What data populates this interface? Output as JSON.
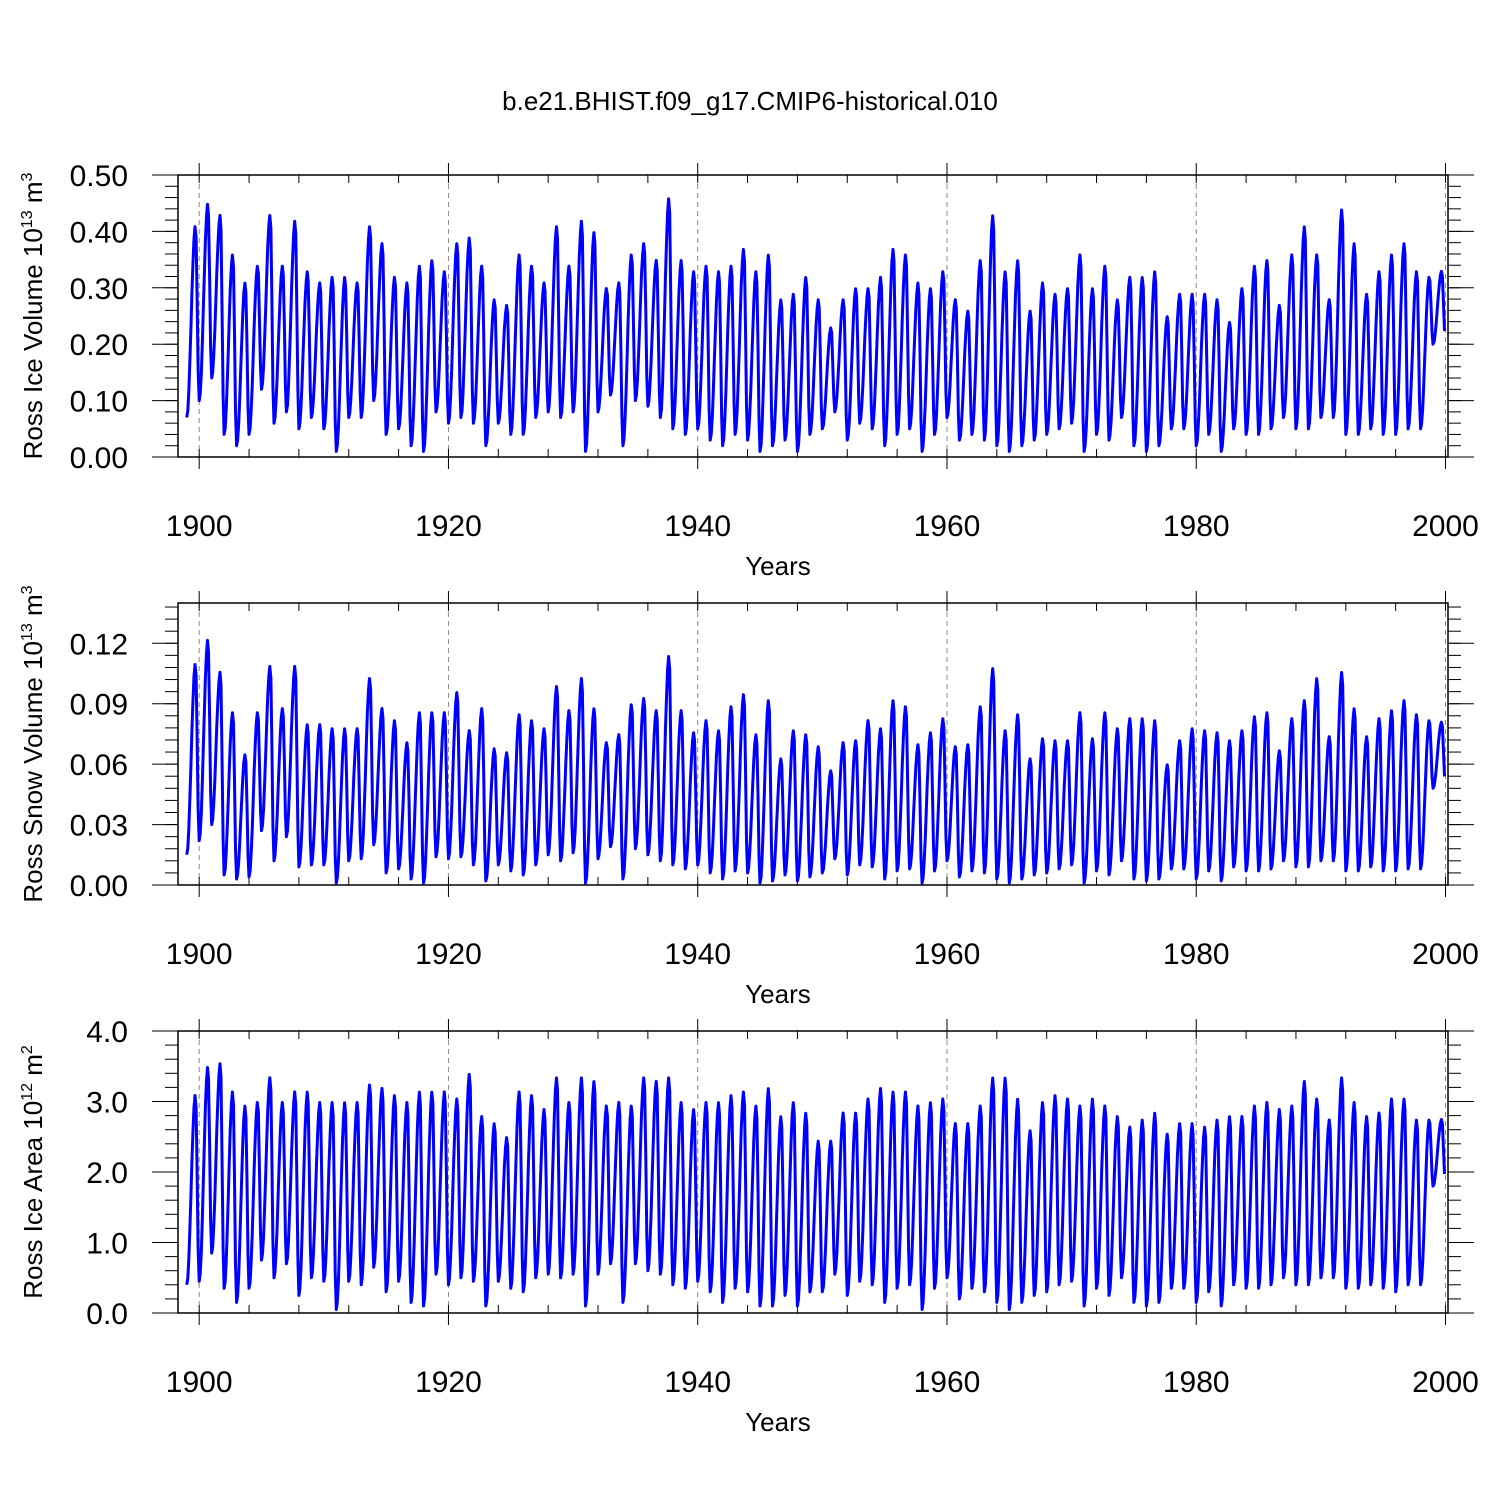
{
  "chart_data": [
    {
      "type": "line",
      "title": "b.e21.BHIST.f09_g17.CMIP6-historical.010",
      "ylabel": "Ross Ice Volume 10",
      "ylabel_exp": "13",
      "ylabel_unit": " m",
      "ylabel_unit_exp": "3",
      "xlabel": "Years",
      "xlim": [
        1898.3,
        2000.2
      ],
      "ylim": [
        0.0,
        0.5
      ],
      "yticks": [
        0.0,
        0.1,
        0.2,
        0.3,
        0.4,
        0.5
      ],
      "ytick_labels": [
        "0.00",
        "0.10",
        "0.20",
        "0.30",
        "0.40",
        "0.50"
      ],
      "xticks": [
        1900,
        1920,
        1940,
        1960,
        1980,
        2000
      ],
      "xtick_labels": [
        "1900",
        "1920",
        "1940",
        "1960",
        "1980",
        "2000"
      ],
      "grid_x": "dashed vertical at major years",
      "line_color": "#0000ff",
      "series": [
        {
          "name": "Ross Ice Volume",
          "start_year": 1899.0,
          "end_year": 2000.0,
          "annual_max": [
            0.41,
            0.45,
            0.43,
            0.36,
            0.31,
            0.34,
            0.43,
            0.34,
            0.42,
            0.33,
            0.31,
            0.32,
            0.32,
            0.31,
            0.41,
            0.38,
            0.32,
            0.31,
            0.34,
            0.35,
            0.33,
            0.38,
            0.39,
            0.34,
            0.28,
            0.27,
            0.36,
            0.34,
            0.31,
            0.41,
            0.34,
            0.42,
            0.4,
            0.3,
            0.31,
            0.36,
            0.38,
            0.35,
            0.46,
            0.35,
            0.33,
            0.34,
            0.33,
            0.34,
            0.37,
            0.33,
            0.36,
            0.28,
            0.29,
            0.32,
            0.28,
            0.23,
            0.28,
            0.3,
            0.3,
            0.32,
            0.37,
            0.36,
            0.31,
            0.3,
            0.33,
            0.28,
            0.26,
            0.35,
            0.43,
            0.33,
            0.35,
            0.26,
            0.31,
            0.29,
            0.3,
            0.36,
            0.3,
            0.34,
            0.28,
            0.32,
            0.32,
            0.33,
            0.25,
            0.29,
            0.29,
            0.29,
            0.28,
            0.24,
            0.3,
            0.34,
            0.35,
            0.27,
            0.36,
            0.41,
            0.36,
            0.28,
            0.44,
            0.38,
            0.29,
            0.33,
            0.36,
            0.38,
            0.33,
            0.32,
            0.33
          ],
          "annual_min": [
            0.07,
            0.1,
            0.14,
            0.04,
            0.02,
            0.04,
            0.12,
            0.06,
            0.08,
            0.05,
            0.07,
            0.05,
            0.01,
            0.07,
            0.07,
            0.1,
            0.04,
            0.05,
            0.02,
            0.01,
            0.08,
            0.06,
            0.07,
            0.06,
            0.02,
            0.06,
            0.04,
            0.04,
            0.07,
            0.08,
            0.07,
            0.08,
            0.01,
            0.08,
            0.11,
            0.02,
            0.1,
            0.09,
            0.07,
            0.05,
            0.04,
            0.05,
            0.03,
            0.02,
            0.04,
            0.03,
            0.01,
            0.02,
            0.03,
            0.01,
            0.04,
            0.05,
            0.08,
            0.03,
            0.06,
            0.05,
            0.02,
            0.04,
            0.05,
            0.01,
            0.04,
            0.07,
            0.03,
            0.04,
            0.03,
            0.02,
            0.01,
            0.02,
            0.03,
            0.04,
            0.05,
            0.06,
            0.01,
            0.04,
            0.03,
            0.07,
            0.02,
            0.01,
            0.02,
            0.05,
            0.05,
            0.02,
            0.04,
            0.01,
            0.05,
            0.04,
            0.04,
            0.05,
            0.07,
            0.05,
            0.05,
            0.07,
            0.07,
            0.04,
            0.04,
            0.05,
            0.04,
            0.04,
            0.05,
            0.05,
            0.2
          ]
        }
      ]
    },
    {
      "type": "line",
      "ylabel": "Ross Snow Volume 10",
      "ylabel_exp": "13",
      "ylabel_unit": " m",
      "ylabel_unit_exp": "3",
      "xlabel": "Years",
      "xlim": [
        1898.3,
        2000.2
      ],
      "ylim": [
        0.0,
        0.14
      ],
      "yticks": [
        0.0,
        0.03,
        0.06,
        0.09,
        0.12
      ],
      "ytick_labels": [
        "0.00",
        "0.03",
        "0.06",
        "0.09",
        "0.12"
      ],
      "xticks": [
        1900,
        1920,
        1940,
        1960,
        1980,
        2000
      ],
      "xtick_labels": [
        "1900",
        "1920",
        "1940",
        "1960",
        "1980",
        "2000"
      ],
      "grid_x": "dashed vertical at major years",
      "line_color": "#0000ff",
      "series": [
        {
          "name": "Ross Snow Volume",
          "start_year": 1899.0,
          "end_year": 2000.0,
          "annual_max": [
            0.11,
            0.122,
            0.106,
            0.086,
            0.065,
            0.086,
            0.109,
            0.088,
            0.109,
            0.08,
            0.08,
            0.078,
            0.078,
            0.078,
            0.103,
            0.088,
            0.082,
            0.071,
            0.086,
            0.086,
            0.086,
            0.096,
            0.077,
            0.088,
            0.068,
            0.066,
            0.085,
            0.082,
            0.078,
            0.099,
            0.087,
            0.103,
            0.088,
            0.071,
            0.075,
            0.09,
            0.093,
            0.087,
            0.114,
            0.087,
            0.076,
            0.082,
            0.077,
            0.089,
            0.095,
            0.075,
            0.092,
            0.063,
            0.077,
            0.075,
            0.069,
            0.057,
            0.071,
            0.072,
            0.082,
            0.078,
            0.092,
            0.089,
            0.07,
            0.076,
            0.083,
            0.069,
            0.07,
            0.089,
            0.108,
            0.077,
            0.085,
            0.063,
            0.073,
            0.072,
            0.072,
            0.086,
            0.073,
            0.086,
            0.078,
            0.083,
            0.083,
            0.082,
            0.06,
            0.072,
            0.078,
            0.077,
            0.076,
            0.072,
            0.077,
            0.084,
            0.086,
            0.067,
            0.083,
            0.092,
            0.103,
            0.074,
            0.106,
            0.088,
            0.074,
            0.083,
            0.087,
            0.092,
            0.085,
            0.082,
            0.081
          ],
          "annual_min": [
            0.015,
            0.022,
            0.03,
            0.005,
            0.003,
            0.004,
            0.027,
            0.012,
            0.024,
            0.009,
            0.01,
            0.01,
            0.001,
            0.012,
            0.013,
            0.02,
            0.006,
            0.008,
            0.003,
            0.001,
            0.014,
            0.013,
            0.014,
            0.01,
            0.002,
            0.01,
            0.007,
            0.005,
            0.01,
            0.015,
            0.012,
            0.016,
            0.001,
            0.013,
            0.019,
            0.003,
            0.018,
            0.015,
            0.012,
            0.01,
            0.008,
            0.01,
            0.006,
            0.003,
            0.007,
            0.006,
            0.001,
            0.002,
            0.005,
            0.002,
            0.004,
            0.006,
            0.013,
            0.005,
            0.01,
            0.009,
            0.003,
            0.007,
            0.008,
            0.001,
            0.007,
            0.012,
            0.004,
            0.007,
            0.006,
            0.003,
            0.001,
            0.003,
            0.005,
            0.006,
            0.008,
            0.01,
            0.001,
            0.007,
            0.005,
            0.012,
            0.003,
            0.002,
            0.003,
            0.008,
            0.008,
            0.003,
            0.007,
            0.002,
            0.009,
            0.007,
            0.007,
            0.008,
            0.012,
            0.009,
            0.009,
            0.012,
            0.012,
            0.007,
            0.007,
            0.009,
            0.007,
            0.007,
            0.008,
            0.008,
            0.048
          ]
        }
      ]
    },
    {
      "type": "line",
      "ylabel": "Ross Ice Area 10",
      "ylabel_exp": "12",
      "ylabel_unit": " m",
      "ylabel_unit_exp": "2",
      "xlabel": "Years",
      "xlim": [
        1898.3,
        2000.2
      ],
      "ylim": [
        0.0,
        4.0
      ],
      "yticks": [
        0.0,
        1.0,
        2.0,
        3.0,
        4.0
      ],
      "ytick_labels": [
        "0.0",
        "1.0",
        "2.0",
        "3.0",
        "4.0"
      ],
      "xticks": [
        1900,
        1920,
        1940,
        1960,
        1980,
        2000
      ],
      "xtick_labels": [
        "1900",
        "1920",
        "1940",
        "1960",
        "1980",
        "2000"
      ],
      "grid_x": "dashed vertical at major years",
      "line_color": "#0000ff",
      "series": [
        {
          "name": "Ross Ice Area",
          "start_year": 1899.0,
          "end_year": 2000.0,
          "annual_max": [
            3.1,
            3.5,
            3.55,
            3.15,
            2.95,
            3.0,
            3.35,
            3.0,
            3.15,
            3.15,
            3.0,
            3.0,
            3.0,
            3.0,
            3.25,
            3.2,
            3.1,
            3.0,
            3.15,
            3.15,
            3.15,
            3.05,
            3.4,
            2.8,
            2.7,
            2.5,
            3.15,
            3.1,
            2.9,
            3.35,
            3.0,
            3.35,
            3.3,
            2.95,
            3.0,
            2.95,
            3.35,
            3.3,
            3.35,
            3.0,
            2.9,
            3.0,
            3.0,
            3.1,
            3.15,
            2.95,
            3.2,
            2.8,
            3.0,
            2.85,
            2.45,
            2.45,
            2.85,
            2.85,
            3.05,
            3.2,
            3.15,
            3.15,
            2.95,
            3.0,
            3.05,
            2.7,
            2.7,
            2.95,
            3.35,
            3.35,
            3.05,
            2.6,
            3.0,
            3.1,
            3.05,
            2.95,
            3.05,
            2.95,
            2.8,
            2.65,
            2.75,
            2.85,
            2.55,
            2.7,
            2.7,
            2.65,
            2.75,
            2.8,
            2.8,
            2.95,
            3.0,
            2.9,
            2.95,
            3.3,
            3.05,
            2.75,
            3.35,
            3.0,
            2.8,
            2.85,
            3.05,
            3.05,
            2.75,
            2.75,
            2.75
          ],
          "annual_min": [
            0.4,
            0.45,
            0.85,
            0.35,
            0.15,
            0.35,
            0.75,
            0.5,
            0.7,
            0.25,
            0.5,
            0.45,
            0.05,
            0.45,
            0.4,
            0.65,
            0.3,
            0.45,
            0.15,
            0.1,
            0.55,
            0.4,
            0.5,
            0.45,
            0.1,
            0.45,
            0.35,
            0.3,
            0.5,
            0.55,
            0.5,
            0.55,
            0.1,
            0.55,
            0.7,
            0.15,
            0.7,
            0.6,
            0.55,
            0.4,
            0.35,
            0.45,
            0.3,
            0.15,
            0.35,
            0.3,
            0.1,
            0.1,
            0.25,
            0.1,
            0.3,
            0.3,
            0.55,
            0.25,
            0.45,
            0.4,
            0.15,
            0.35,
            0.4,
            0.05,
            0.35,
            0.5,
            0.2,
            0.35,
            0.3,
            0.15,
            0.05,
            0.15,
            0.25,
            0.3,
            0.4,
            0.45,
            0.1,
            0.35,
            0.25,
            0.5,
            0.15,
            0.1,
            0.15,
            0.35,
            0.35,
            0.15,
            0.3,
            0.1,
            0.4,
            0.35,
            0.35,
            0.4,
            0.5,
            0.4,
            0.4,
            0.5,
            0.5,
            0.35,
            0.35,
            0.4,
            0.35,
            0.3,
            0.4,
            0.4,
            1.8
          ]
        }
      ]
    }
  ]
}
